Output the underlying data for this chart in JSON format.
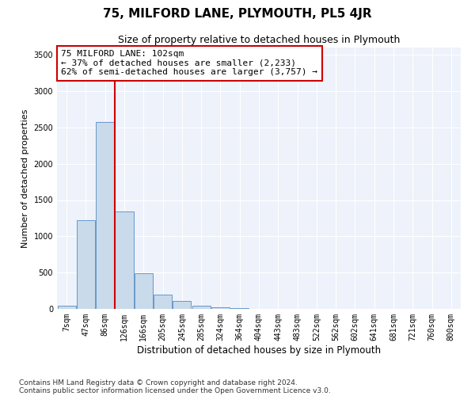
{
  "title": "75, MILFORD LANE, PLYMOUTH, PL5 4JR",
  "subtitle": "Size of property relative to detached houses in Plymouth",
  "xlabel": "Distribution of detached houses by size in Plymouth",
  "ylabel": "Number of detached properties",
  "categories": [
    "7sqm",
    "47sqm",
    "86sqm",
    "126sqm",
    "166sqm",
    "205sqm",
    "245sqm",
    "285sqm",
    "324sqm",
    "364sqm",
    "404sqm",
    "443sqm",
    "483sqm",
    "522sqm",
    "562sqm",
    "602sqm",
    "641sqm",
    "681sqm",
    "721sqm",
    "760sqm",
    "800sqm"
  ],
  "values": [
    40,
    1220,
    2580,
    1340,
    490,
    195,
    110,
    40,
    25,
    10,
    5,
    0,
    0,
    0,
    0,
    0,
    0,
    0,
    0,
    0,
    0
  ],
  "bar_color": "#c9daea",
  "bar_edge_color": "#6699cc",
  "highlight_line_color": "#cc0000",
  "annotation_line1": "75 MILFORD LANE: 102sqm",
  "annotation_line2": "← 37% of detached houses are smaller (2,233)",
  "annotation_line3": "62% of semi-detached houses are larger (3,757) →",
  "annotation_box_color": "#ffffff",
  "annotation_box_edge": "#cc0000",
  "ylim": [
    0,
    3600
  ],
  "yticks": [
    0,
    500,
    1000,
    1500,
    2000,
    2500,
    3000,
    3500
  ],
  "background_color": "#eef2fb",
  "footer_line1": "Contains HM Land Registry data © Crown copyright and database right 2024.",
  "footer_line2": "Contains public sector information licensed under the Open Government Licence v3.0.",
  "title_fontsize": 11,
  "subtitle_fontsize": 9,
  "xlabel_fontsize": 8.5,
  "ylabel_fontsize": 8,
  "tick_fontsize": 7,
  "annotation_fontsize": 8,
  "footer_fontsize": 6.5
}
